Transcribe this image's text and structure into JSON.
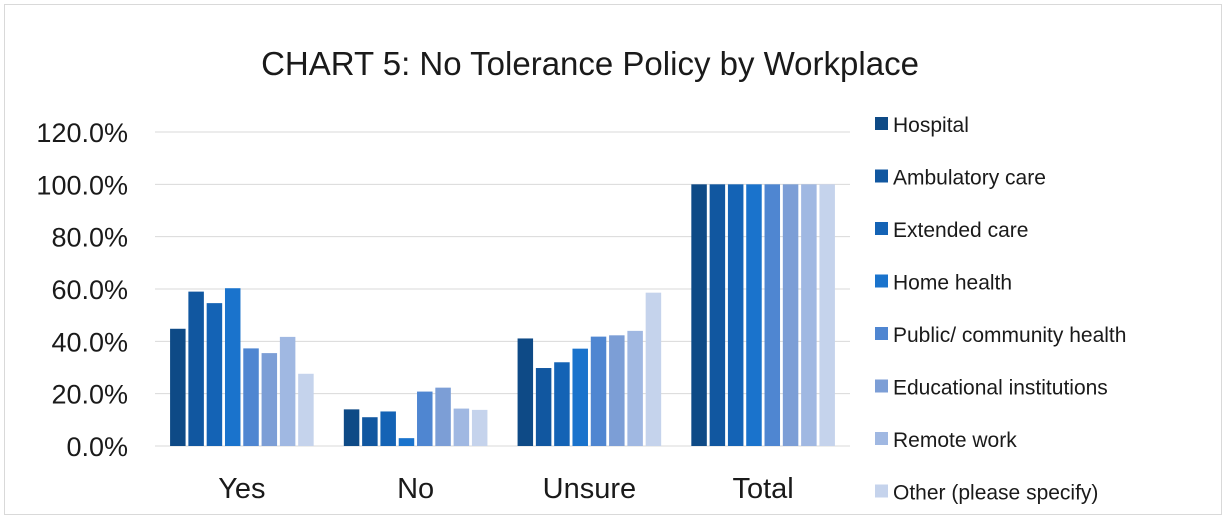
{
  "chart_data": {
    "type": "bar",
    "title": "CHART 5: No Tolerance Policy by Workplace",
    "xlabel": "",
    "ylabel": "",
    "categories": [
      "Yes",
      "No",
      "Unsure",
      "Total"
    ],
    "ylim": [
      0,
      120
    ],
    "yticks": [
      "0.0%",
      "20.0%",
      "40.0%",
      "60.0%",
      "80.0%",
      "100.0%",
      "120.0%"
    ],
    "grid": true,
    "legend_position": "right",
    "series": [
      {
        "name": "Hospital",
        "color": "#0e4a86",
        "values": [
          44.8,
          14.0,
          41.1,
          100
        ]
      },
      {
        "name": "Ambulatory care",
        "color": "#1157a0",
        "values": [
          59.0,
          11.0,
          29.8,
          100
        ]
      },
      {
        "name": "Extended care",
        "color": "#1463b5",
        "values": [
          54.6,
          13.2,
          32.0,
          100
        ]
      },
      {
        "name": "Home health",
        "color": "#1a73cc",
        "values": [
          60.3,
          3.0,
          37.2,
          100
        ]
      },
      {
        "name": "Public/ community health",
        "color": "#4f86d1",
        "values": [
          37.3,
          20.8,
          41.8,
          100
        ]
      },
      {
        "name": "Educational institutions",
        "color": "#7c9ed6",
        "values": [
          35.5,
          22.3,
          42.3,
          100
        ]
      },
      {
        "name": "Remote work",
        "color": "#a0b8e2",
        "values": [
          41.7,
          14.3,
          44.0,
          100
        ]
      },
      {
        "name": "Other (please specify)",
        "color": "#c5d3ec",
        "values": [
          27.6,
          13.8,
          58.6,
          100
        ]
      }
    ]
  }
}
